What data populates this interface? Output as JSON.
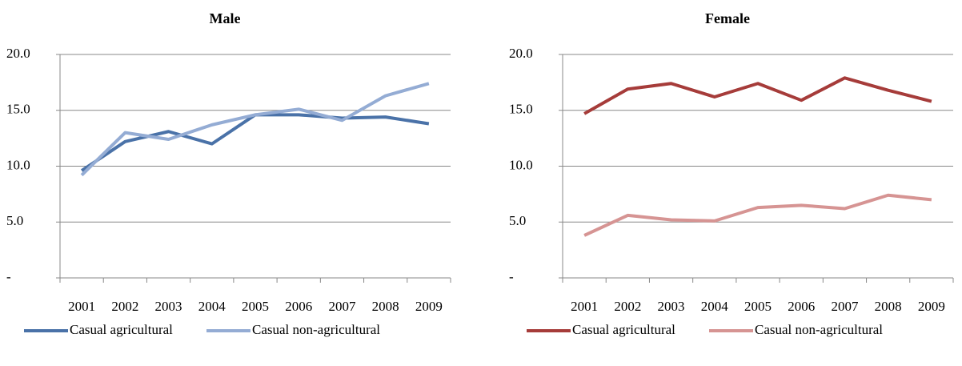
{
  "chart_data": [
    {
      "type": "line",
      "title": "Male",
      "categories": [
        "2001",
        "2002",
        "2003",
        "2004",
        "2005",
        "2006",
        "2007",
        "2008",
        "2009"
      ],
      "series": [
        {
          "name": "Casual agricultural",
          "color": "#4a72a8",
          "values": [
            9.6,
            12.2,
            13.1,
            12.0,
            14.6,
            14.6,
            14.3,
            14.4,
            13.8
          ]
        },
        {
          "name": "Casual non-agricultural",
          "color": "#94acd4",
          "values": [
            9.2,
            13.0,
            12.4,
            13.7,
            14.6,
            15.1,
            14.1,
            16.3,
            17.4
          ]
        }
      ],
      "ylim": [
        0,
        20
      ],
      "yticks": [
        {
          "value": 0,
          "label": "-"
        },
        {
          "value": 5,
          "label": "5.0"
        },
        {
          "value": 10,
          "label": "10.0"
        },
        {
          "value": 15,
          "label": "15.0"
        },
        {
          "value": 20,
          "label": "20.0"
        }
      ],
      "grid": true,
      "legend": "bottom"
    },
    {
      "type": "line",
      "title": "Female",
      "categories": [
        "2001",
        "2002",
        "2003",
        "2004",
        "2005",
        "2006",
        "2007",
        "2008",
        "2009"
      ],
      "series": [
        {
          "name": "Casual agricultural",
          "color": "#a63c3a",
          "values": [
            14.7,
            16.9,
            17.4,
            16.2,
            17.4,
            15.9,
            17.9,
            16.8,
            15.8
          ]
        },
        {
          "name": "Casual non-agricultural",
          "color": "#d69493",
          "values": [
            3.8,
            5.6,
            5.2,
            5.1,
            6.3,
            6.5,
            6.2,
            7.4,
            7.0
          ]
        }
      ],
      "ylim": [
        0,
        20
      ],
      "yticks": [
        {
          "value": 0,
          "label": "-"
        },
        {
          "value": 5,
          "label": "5.0"
        },
        {
          "value": 10,
          "label": "10.0"
        },
        {
          "value": 15,
          "label": "15.0"
        },
        {
          "value": 20,
          "label": "20.0"
        }
      ],
      "grid": true,
      "legend": "bottom"
    }
  ]
}
